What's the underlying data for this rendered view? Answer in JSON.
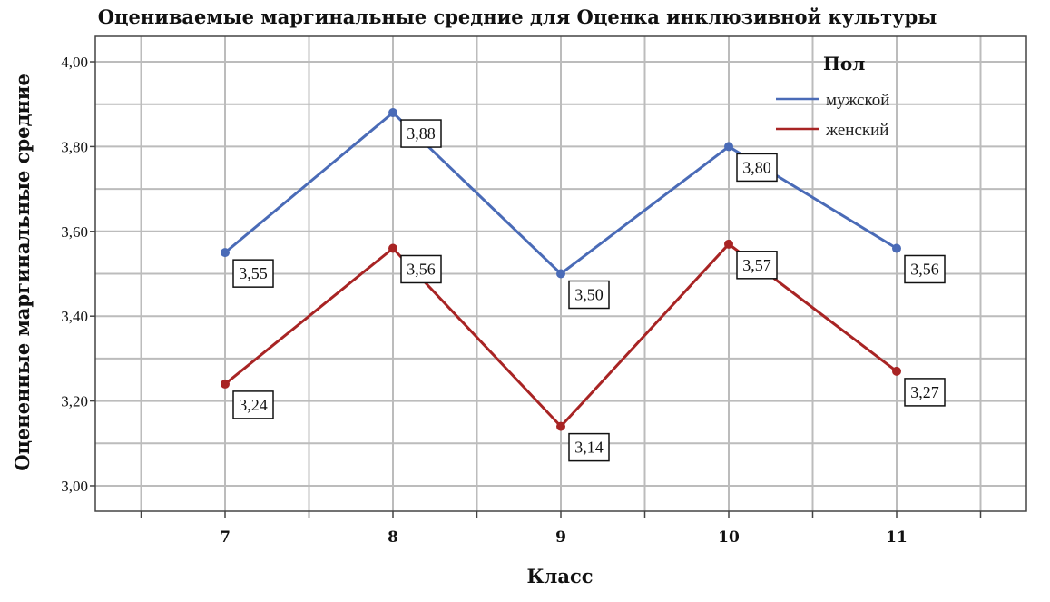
{
  "chart_data": {
    "type": "line",
    "title": "Оцениваемые маргинальные средние для Оценка инклюзивной культуры",
    "xlabel": "Класс",
    "ylabel": "Оцененные маргинальные средние",
    "categories": [
      "7",
      "8",
      "9",
      "10",
      "11"
    ],
    "ylim": [
      2.94,
      4.06
    ],
    "yticks": [
      3.0,
      3.2,
      3.4,
      3.6,
      3.8,
      4.0
    ],
    "ytick_labels": [
      "3,00",
      "3,20",
      "3,40",
      "3,60",
      "3,80",
      "4,00"
    ],
    "grid": true,
    "legend_title": "Пол",
    "legend_position": "top-right",
    "series": [
      {
        "name": "мужской",
        "color": "#4a6bb7",
        "values": [
          3.55,
          3.88,
          3.5,
          3.8,
          3.56
        ],
        "labels": [
          "3,55",
          "3,88",
          "3,50",
          "3,80",
          "3,56"
        ]
      },
      {
        "name": "женский",
        "color": "#a82424",
        "values": [
          3.24,
          3.56,
          3.14,
          3.57,
          3.27
        ],
        "labels": [
          "3,24",
          "3,56",
          "3,14",
          "3,57",
          "3,27"
        ]
      }
    ]
  }
}
